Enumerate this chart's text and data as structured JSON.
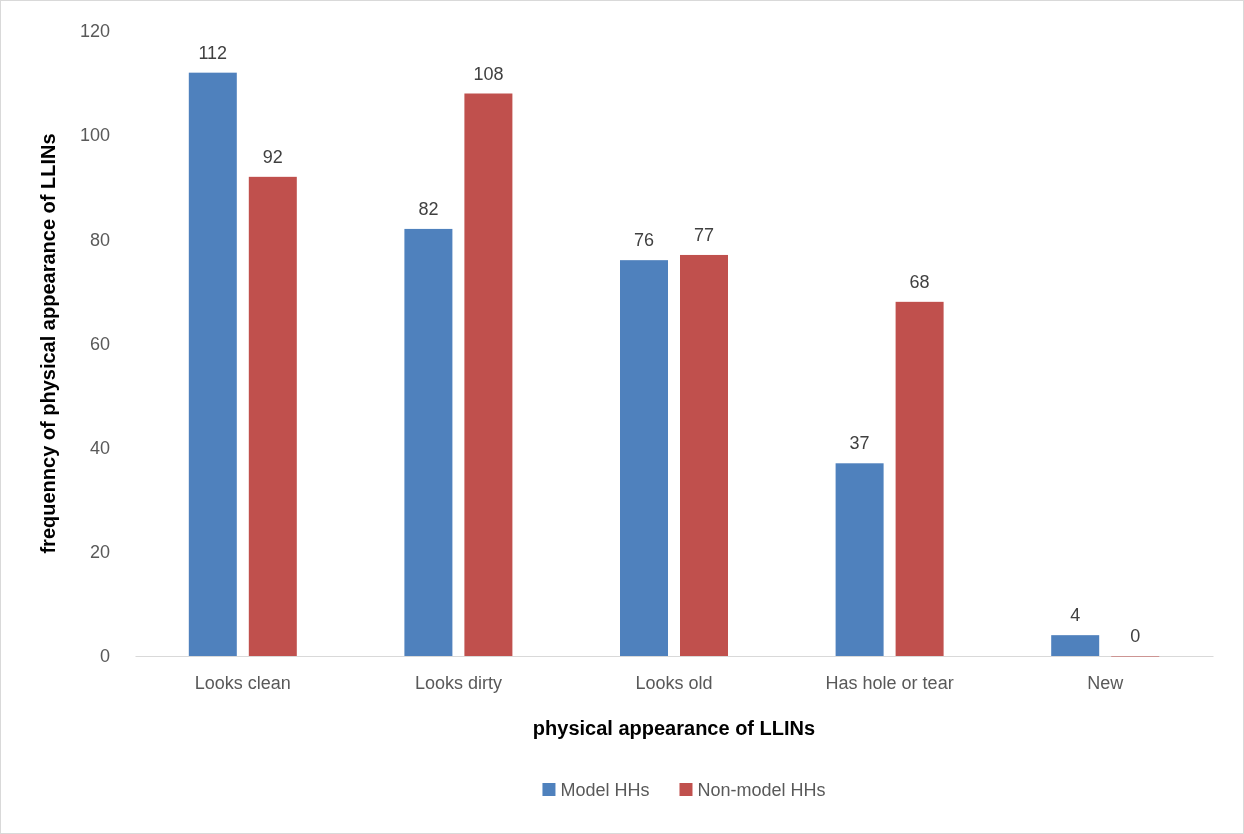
{
  "chart_data": {
    "type": "bar",
    "xlabel": "physical appearance of LLINs",
    "ylabel": "frequenncy of physical appearance of LLINs",
    "categories": [
      "Looks clean",
      "Looks dirty",
      "Looks old",
      "Has hole or tear",
      "New"
    ],
    "series": [
      {
        "name": "Model HHs",
        "color": "#4f81bd",
        "values": [
          112,
          82,
          76,
          37,
          4
        ]
      },
      {
        "name": "Non-model HHs",
        "color": "#c0504d",
        "values": [
          92,
          108,
          77,
          68,
          0
        ]
      }
    ],
    "ylim": [
      0,
      120
    ],
    "yticks": [
      0,
      20,
      40,
      60,
      80,
      100,
      120
    ],
    "grid": false,
    "legend": "bottom",
    "data_labels": true
  }
}
